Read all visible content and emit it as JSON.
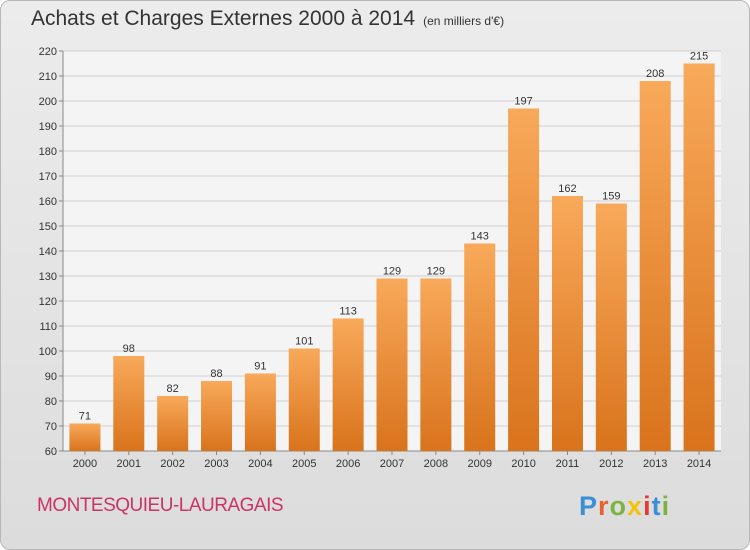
{
  "header": {
    "title": "Achats et Charges Externes 2000 à 2014",
    "subtitle": "(en milliers d'€)"
  },
  "footer": {
    "commune": "MONTESQUIEU-LAURAGAIS",
    "logo": "Proxiti",
    "logo_colors": [
      "#3b8fd6",
      "#e8622d",
      "#7cb342",
      "#f4c20d",
      "#e53935",
      "#3b8fd6",
      "#7cb342"
    ]
  },
  "colors": {
    "bar_light": "#f8a95a",
    "bar_dark": "#d9731c",
    "grid": "#cfcfcf"
  },
  "chart_data": {
    "type": "bar",
    "title": "Achats et Charges Externes 2000 à 2014",
    "subtitle": "(en milliers d'€)",
    "categories": [
      "2000",
      "2001",
      "2002",
      "2003",
      "2004",
      "2005",
      "2006",
      "2007",
      "2008",
      "2009",
      "2010",
      "2011",
      "2012",
      "2013",
      "2014"
    ],
    "values": [
      71,
      98,
      82,
      88,
      91,
      101,
      113,
      129,
      129,
      143,
      197,
      162,
      159,
      208,
      215
    ],
    "ylim": [
      60,
      220
    ],
    "yticks": [
      60,
      70,
      80,
      90,
      100,
      110,
      120,
      130,
      140,
      150,
      160,
      170,
      180,
      190,
      200,
      210,
      220
    ],
    "grid": true
  }
}
